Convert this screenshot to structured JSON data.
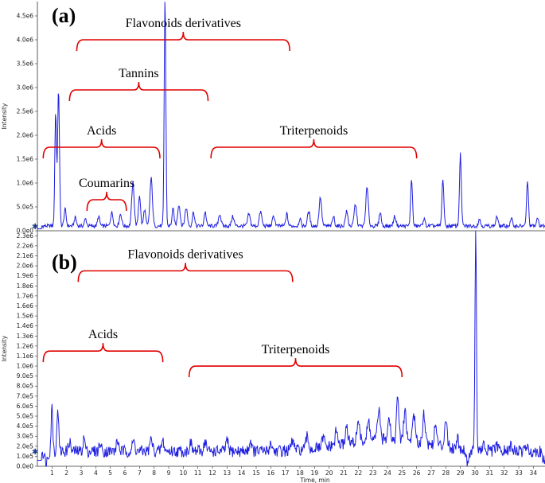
{
  "colors": {
    "trace": "#1f1fe0",
    "brace": "#e00000",
    "axis": "#333333"
  },
  "chart_data": [
    {
      "type": "line",
      "panel_label": "(a)",
      "ylabel": "Intensity",
      "xlabel": "",
      "xlim": [
        0,
        34.8
      ],
      "ylim": [
        0,
        4800000
      ],
      "y_ticks": [
        {
          "v": 0,
          "label": "0.0e0"
        },
        {
          "v": 500000,
          "label": "5.0e5"
        },
        {
          "v": 1000000,
          "label": "1.0e6"
        },
        {
          "v": 1500000,
          "label": "1.5e6"
        },
        {
          "v": 2000000,
          "label": "2.0e6"
        },
        {
          "v": 2500000,
          "label": "2.5e6"
        },
        {
          "v": 3000000,
          "label": "3.0e6"
        },
        {
          "v": 3500000,
          "label": "3.5e6"
        },
        {
          "v": 4000000,
          "label": "4.0e6"
        },
        {
          "v": 4500000,
          "label": "4.5e6"
        }
      ],
      "baseline": 100000,
      "peaks": [
        [
          1.25,
          2400000,
          0.08
        ],
        [
          1.45,
          2850000,
          0.09
        ],
        [
          1.9,
          350000,
          0.1
        ],
        [
          2.6,
          180000,
          0.1
        ],
        [
          3.3,
          150000,
          0.1
        ],
        [
          4.2,
          200000,
          0.1
        ],
        [
          5.1,
          280000,
          0.12
        ],
        [
          5.7,
          250000,
          0.12
        ],
        [
          6.55,
          900000,
          0.12
        ],
        [
          7.0,
          650000,
          0.1
        ],
        [
          7.35,
          350000,
          0.1
        ],
        [
          7.8,
          1000000,
          0.12
        ],
        [
          8.75,
          4800000,
          0.08
        ],
        [
          9.3,
          350000,
          0.1
        ],
        [
          9.7,
          450000,
          0.12
        ],
        [
          10.2,
          380000,
          0.12
        ],
        [
          10.7,
          300000,
          0.1
        ],
        [
          11.5,
          300000,
          0.1
        ],
        [
          12.5,
          250000,
          0.12
        ],
        [
          13.4,
          200000,
          0.12
        ],
        [
          14.5,
          250000,
          0.12
        ],
        [
          15.3,
          300000,
          0.12
        ],
        [
          16.2,
          200000,
          0.12
        ],
        [
          17.1,
          250000,
          0.1
        ],
        [
          18.0,
          150000,
          0.1
        ],
        [
          18.6,
          300000,
          0.12
        ],
        [
          19.4,
          600000,
          0.12
        ],
        [
          20.3,
          200000,
          0.1
        ],
        [
          21.2,
          300000,
          0.12
        ],
        [
          21.8,
          450000,
          0.12
        ],
        [
          22.6,
          800000,
          0.12
        ],
        [
          23.5,
          300000,
          0.1
        ],
        [
          24.5,
          200000,
          0.12
        ],
        [
          25.65,
          1000000,
          0.09
        ],
        [
          26.5,
          150000,
          0.1
        ],
        [
          27.8,
          1000000,
          0.09
        ],
        [
          29.0,
          1500000,
          0.09
        ],
        [
          30.3,
          150000,
          0.1
        ],
        [
          31.5,
          200000,
          0.1
        ],
        [
          32.5,
          150000,
          0.1
        ],
        [
          33.6,
          950000,
          0.09
        ],
        [
          34.3,
          150000,
          0.1
        ]
      ],
      "groups": [
        {
          "label": "Flavonoids derivatives",
          "x_from": 2.7,
          "x_to": 17.3,
          "y": 4000000
        },
        {
          "label": "Tannins",
          "x_from": 2.2,
          "x_to": 11.7,
          "y": 2950000
        },
        {
          "label": "Acids",
          "x_from": 0.4,
          "x_to": 8.4,
          "y": 1750000
        },
        {
          "label": "Coumarins",
          "x_from": 3.4,
          "x_to": 6.1,
          "y": 650000
        },
        {
          "label": "Triterpenoids",
          "x_from": 11.9,
          "x_to": 26.0,
          "y": 1750000
        }
      ]
    },
    {
      "type": "line",
      "panel_label": "(b)",
      "ylabel": "Intensity",
      "xlabel": "Time, min",
      "xlim": [
        0,
        34.8
      ],
      "ylim": [
        0,
        2350000
      ],
      "x_ticks": [
        1,
        2,
        3,
        4,
        5,
        6,
        7,
        8,
        9,
        10,
        11,
        12,
        13,
        14,
        15,
        16,
        17,
        18,
        19,
        20,
        21,
        22,
        23,
        24,
        25,
        26,
        27,
        28,
        29,
        30,
        31,
        32,
        33,
        34
      ],
      "y_ticks": [
        {
          "v": 0,
          "label": "0.0e0"
        },
        {
          "v": 100000,
          "label": "1.0e5"
        },
        {
          "v": 200000,
          "label": "2.0e5"
        },
        {
          "v": 300000,
          "label": "3.0e5"
        },
        {
          "v": 400000,
          "label": "4.0e5"
        },
        {
          "v": 500000,
          "label": "5.0e5"
        },
        {
          "v": 600000,
          "label": "6.0e5"
        },
        {
          "v": 700000,
          "label": "7.0e5"
        },
        {
          "v": 800000,
          "label": "8.0e5"
        },
        {
          "v": 900000,
          "label": "9.0e5"
        },
        {
          "v": 1000000,
          "label": "1.0e6"
        },
        {
          "v": 1100000,
          "label": "1.1e6"
        },
        {
          "v": 1200000,
          "label": "1.2e6"
        },
        {
          "v": 1300000,
          "label": "1.3e6"
        },
        {
          "v": 1400000,
          "label": "1.4e6"
        },
        {
          "v": 1500000,
          "label": "1.5e6"
        },
        {
          "v": 1600000,
          "label": "1.6e6"
        },
        {
          "v": 1700000,
          "label": "1.7e6"
        },
        {
          "v": 1800000,
          "label": "1.8e6"
        },
        {
          "v": 1900000,
          "label": "1.9e6"
        },
        {
          "v": 2000000,
          "label": "2.0e6"
        },
        {
          "v": 2100000,
          "label": "2.1e6"
        },
        {
          "v": 2200000,
          "label": "2.2e6"
        },
        {
          "v": 2300000,
          "label": "2.3e6"
        }
      ],
      "baseline": 150000,
      "peaks": [
        [
          1.0,
          450000,
          0.08
        ],
        [
          1.4,
          450000,
          0.08
        ],
        [
          2.2,
          100000,
          0.1
        ],
        [
          3.2,
          130000,
          0.1
        ],
        [
          4.3,
          80000,
          0.1
        ],
        [
          5.5,
          100000,
          0.12
        ],
        [
          6.6,
          100000,
          0.12
        ],
        [
          7.8,
          120000,
          0.12
        ],
        [
          8.6,
          100000,
          0.12
        ],
        [
          10.5,
          80000,
          0.12
        ],
        [
          11.5,
          100000,
          0.12
        ],
        [
          13.0,
          100000,
          0.12
        ],
        [
          14.6,
          100000,
          0.12
        ],
        [
          16.0,
          80000,
          0.12
        ],
        [
          17.5,
          100000,
          0.12
        ],
        [
          18.5,
          130000,
          0.12
        ],
        [
          19.6,
          100000,
          0.12
        ],
        [
          20.5,
          150000,
          0.12
        ],
        [
          21.2,
          180000,
          0.12
        ],
        [
          22.0,
          230000,
          0.12
        ],
        [
          22.7,
          200000,
          0.12
        ],
        [
          23.4,
          300000,
          0.12
        ],
        [
          24.1,
          250000,
          0.12
        ],
        [
          24.7,
          450000,
          0.1
        ],
        [
          25.2,
          300000,
          0.12
        ],
        [
          25.8,
          280000,
          0.12
        ],
        [
          26.5,
          300000,
          0.12
        ],
        [
          27.3,
          200000,
          0.12
        ],
        [
          28.0,
          300000,
          0.12
        ],
        [
          28.8,
          120000,
          0.1
        ],
        [
          30.05,
          2300000,
          0.07
        ],
        [
          30.6,
          50000,
          0.1
        ],
        [
          31.5,
          50000,
          0.12
        ],
        [
          32.5,
          60000,
          0.12
        ],
        [
          33.5,
          40000,
          0.12
        ]
      ],
      "dips": [
        [
          0.6,
          100000,
          0.15
        ],
        [
          29.5,
          120000,
          0.15
        ],
        [
          34.7,
          100000,
          0.12
        ]
      ],
      "groups": [
        {
          "label": "Flavonoids derivatives",
          "x_from": 2.8,
          "x_to": 17.5,
          "y": 1950000
        },
        {
          "label": "Acids",
          "x_from": 0.4,
          "x_to": 8.6,
          "y": 1150000
        },
        {
          "label": "Triterpenoids",
          "x_from": 10.4,
          "x_to": 25.0,
          "y": 1000000
        }
      ]
    }
  ]
}
